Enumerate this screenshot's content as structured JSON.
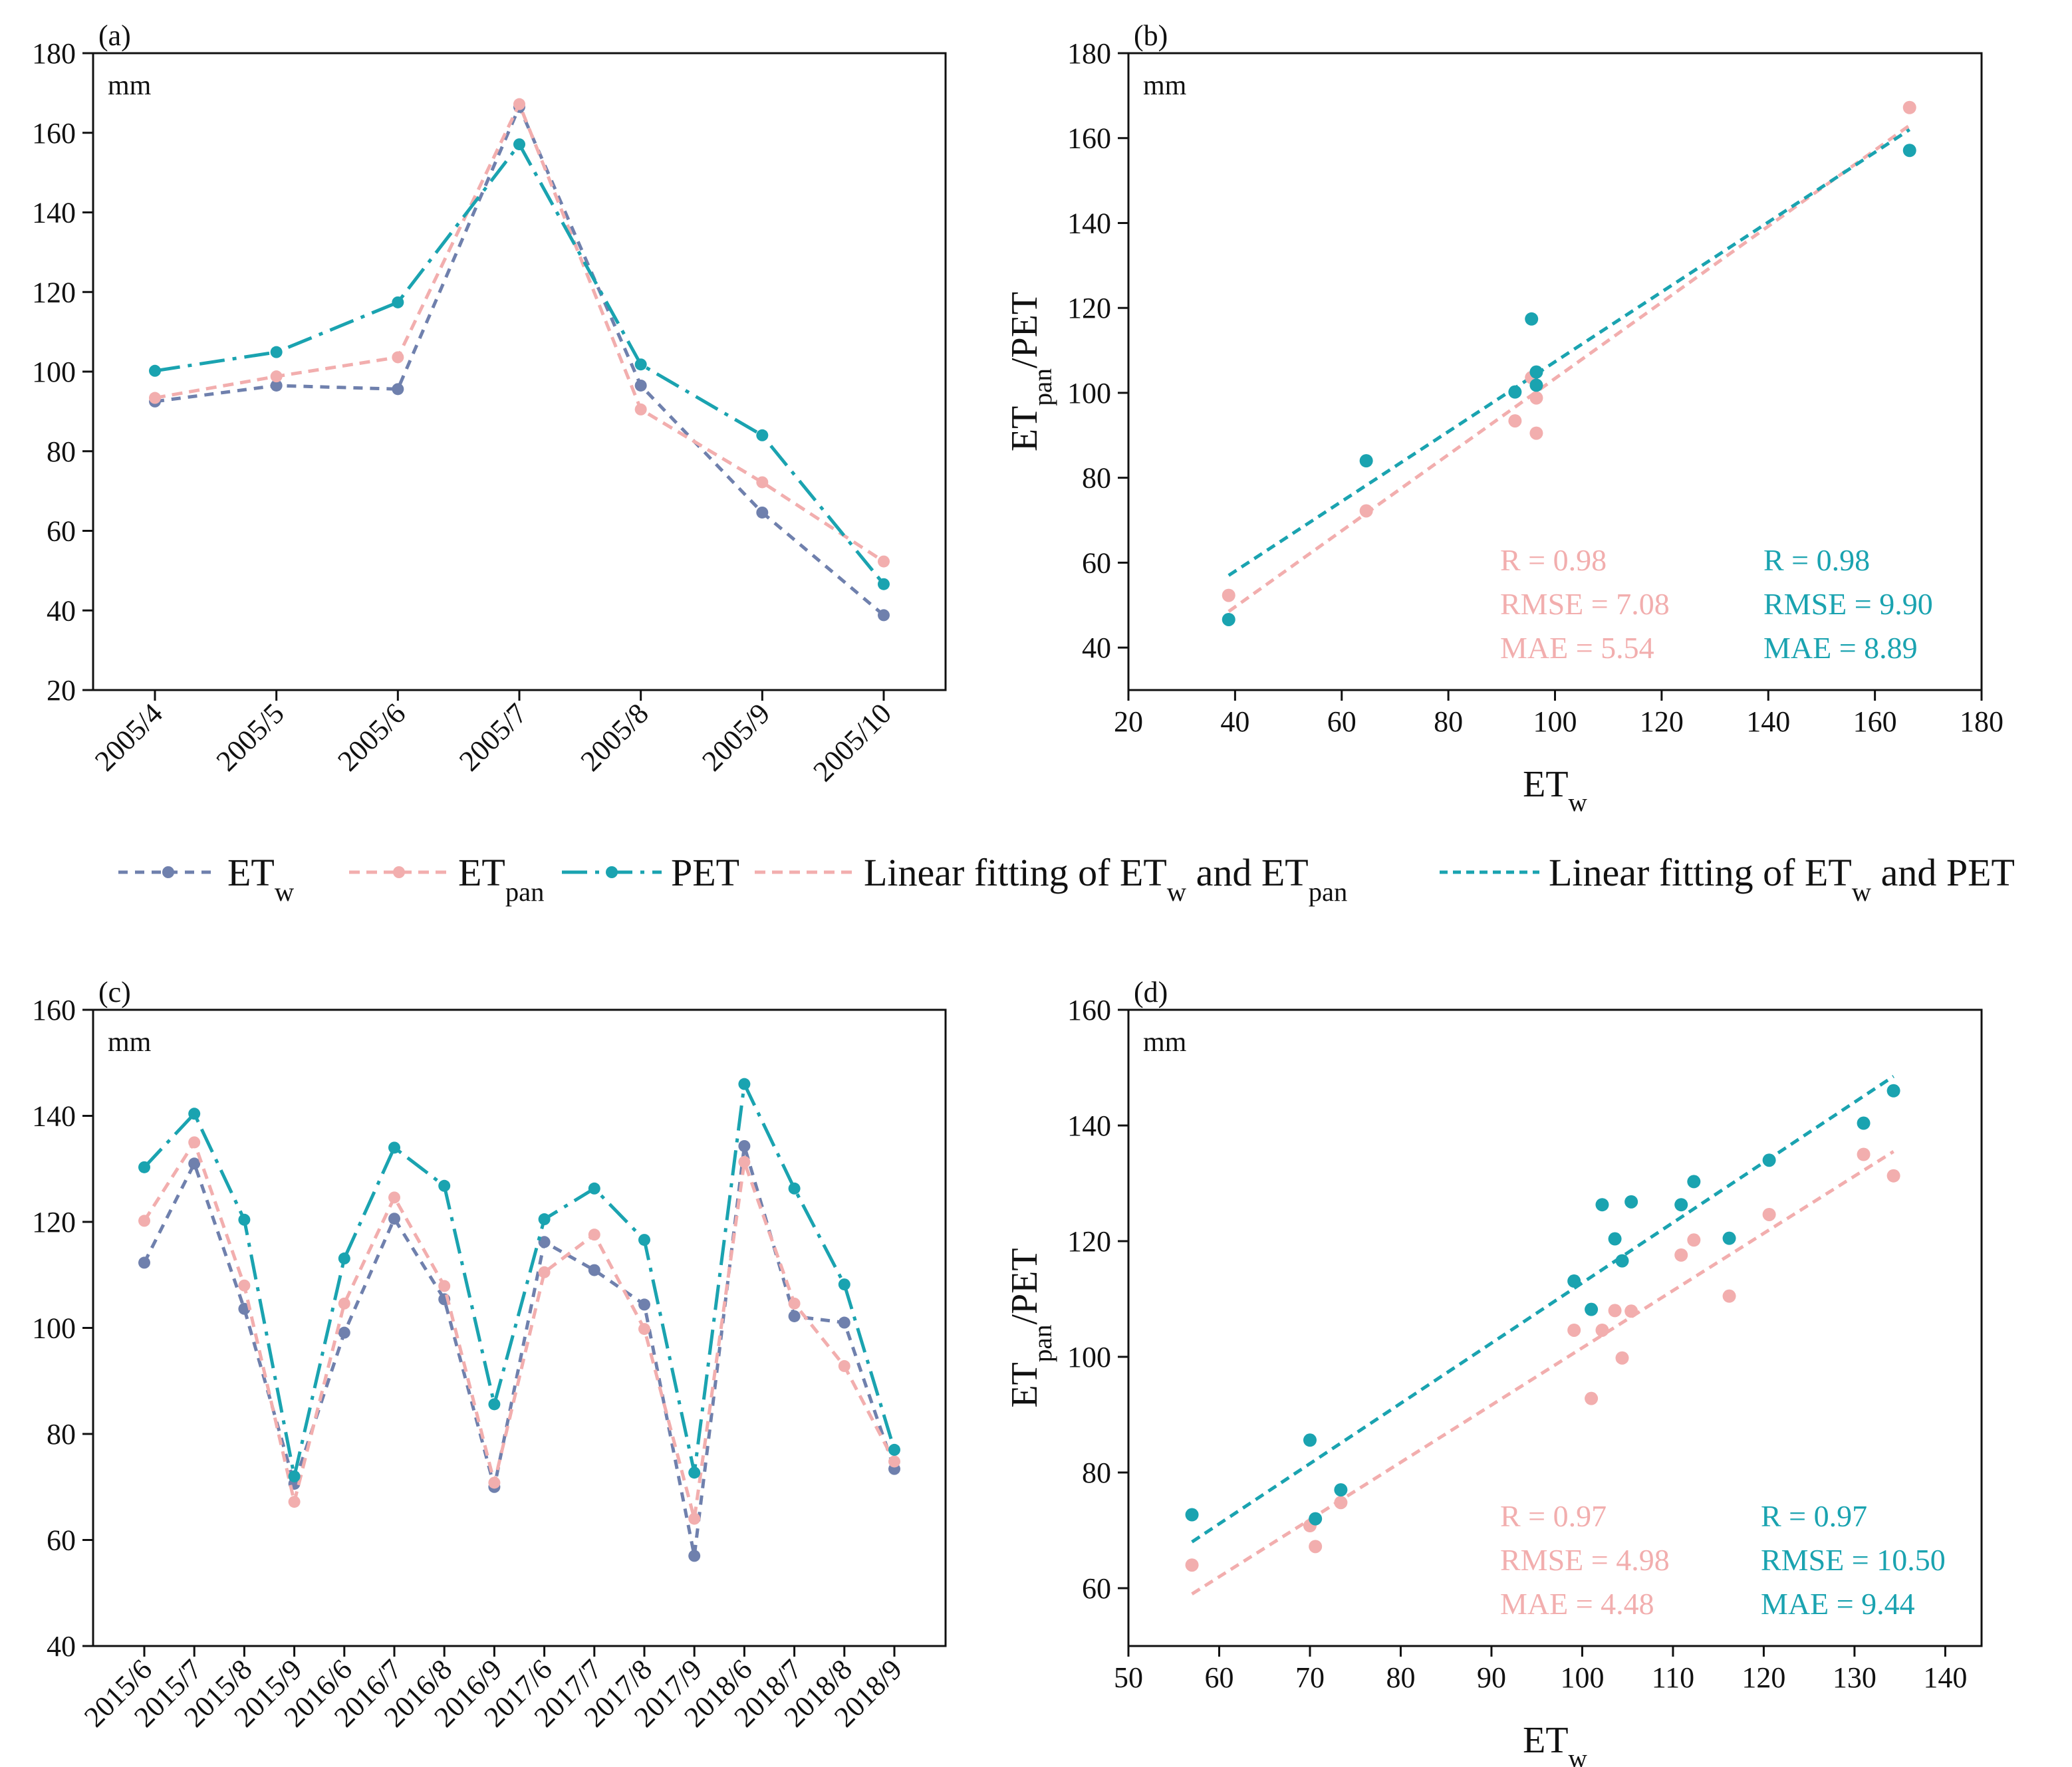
{
  "colors": {
    "etw": "#6f80ad",
    "etpan": "#f2aeae",
    "pet": "#1aa3b0",
    "axis": "#111111"
  },
  "legend": {
    "etw": {
      "main": "ET",
      "sub": "w"
    },
    "etpan": {
      "main": "ET",
      "sub": "pan"
    },
    "pet": {
      "main": "PET"
    },
    "fit_pan": {
      "p1": "Linear fitting of ET",
      "s1": "w",
      "p2": " and ET",
      "s2": "pan"
    },
    "fit_pet": {
      "p1": "Linear fitting of ET",
      "s1": "w",
      "p2": " and PET"
    }
  },
  "chart_data": [
    {
      "panel": "(a)",
      "type": "line",
      "unit": "mm",
      "categories": [
        "2005/4",
        "2005/5",
        "2005/6",
        "2005/7",
        "2005/8",
        "2005/9",
        "2005/10"
      ],
      "ylim": [
        20,
        180
      ],
      "yticks": [
        20,
        40,
        60,
        80,
        100,
        120,
        140,
        160,
        180
      ],
      "series": [
        {
          "name": "ETw",
          "values": [
            92.5,
            96.5,
            95.6,
            166.5,
            96.5,
            64.6,
            38.8
          ]
        },
        {
          "name": "ETpan",
          "values": [
            93.4,
            98.8,
            103.6,
            167.2,
            90.5,
            72.2,
            52.3
          ]
        },
        {
          "name": "PET",
          "values": [
            100.2,
            104.9,
            117.4,
            157.1,
            101.8,
            84.0,
            46.6
          ]
        }
      ]
    },
    {
      "panel": "(b)",
      "type": "scatter",
      "unit": "mm",
      "xlabel": {
        "main": "ET",
        "sub": "w"
      },
      "ylabel": {
        "main": "ET",
        "sub": "pan",
        "rest": "/PET"
      },
      "xlim": [
        20,
        180
      ],
      "ylim": [
        30,
        180
      ],
      "xticks": [
        20,
        40,
        60,
        80,
        100,
        120,
        140,
        160,
        180
      ],
      "yticks": [
        40,
        60,
        80,
        100,
        120,
        140,
        160,
        180
      ],
      "x": [
        92.5,
        96.5,
        95.6,
        166.5,
        96.5,
        64.6,
        38.8
      ],
      "series": [
        {
          "name": "ETpan",
          "values": [
            93.4,
            98.8,
            103.6,
            167.2,
            90.5,
            72.2,
            52.3
          ],
          "fit": {
            "x": [
              38.8,
              166.5
            ],
            "y": [
              48.5,
              163.0
            ]
          },
          "stats": [
            "R = 0.98",
            "RMSE = 7.08",
            "MAE = 5.54"
          ]
        },
        {
          "name": "PET",
          "values": [
            100.2,
            104.9,
            117.4,
            157.1,
            101.8,
            84.0,
            46.6
          ],
          "fit": {
            "x": [
              38.8,
              166.5
            ],
            "y": [
              57.0,
              162.0
            ]
          },
          "stats": [
            "R = 0.98",
            "RMSE = 9.90",
            "MAE = 8.89"
          ]
        }
      ]
    },
    {
      "panel": "(c)",
      "type": "line",
      "unit": "mm",
      "categories": [
        "2015/6",
        "2015/7",
        "2015/8",
        "2015/9",
        "2016/6",
        "2016/7",
        "2016/8",
        "2016/9",
        "2017/6",
        "2017/7",
        "2017/8",
        "2017/9",
        "2018/6",
        "2018/7",
        "2018/8",
        "2018/9"
      ],
      "ylim": [
        40,
        160
      ],
      "yticks": [
        40,
        60,
        80,
        100,
        120,
        140,
        160
      ],
      "series": [
        {
          "name": "ETw",
          "values": [
            112.3,
            131.0,
            103.6,
            70.6,
            99.1,
            120.6,
            105.4,
            70.0,
            116.2,
            110.9,
            104.4,
            57.0,
            134.3,
            102.2,
            101.0,
            73.4
          ]
        },
        {
          "name": "ETpan",
          "values": [
            120.2,
            135.0,
            108.0,
            67.2,
            104.6,
            124.6,
            107.9,
            70.8,
            110.5,
            117.6,
            99.8,
            64.0,
            131.3,
            104.6,
            92.8,
            74.8
          ]
        },
        {
          "name": "PET",
          "values": [
            130.3,
            140.4,
            120.4,
            72.0,
            113.1,
            134.0,
            126.8,
            85.6,
            120.5,
            126.3,
            116.6,
            72.7,
            146.0,
            126.3,
            108.2,
            77.0
          ]
        }
      ]
    },
    {
      "panel": "(d)",
      "type": "scatter",
      "unit": "mm",
      "xlabel": {
        "main": "ET",
        "sub": "w"
      },
      "ylabel": {
        "main": "ET",
        "sub": "pan",
        "rest": "/PET"
      },
      "xlim": [
        50,
        144
      ],
      "ylim": [
        50,
        160
      ],
      "xticks": [
        50,
        60,
        70,
        80,
        90,
        100,
        110,
        120,
        130,
        140
      ],
      "yticks": [
        60,
        80,
        100,
        120,
        140,
        160
      ],
      "x": [
        57.0,
        70.0,
        70.6,
        73.4,
        99.1,
        101.0,
        102.2,
        103.6,
        104.4,
        105.4,
        110.9,
        112.3,
        116.2,
        120.6,
        131.0,
        134.3
      ],
      "series": [
        {
          "name": "ETpan",
          "values": [
            64.0,
            70.8,
            67.2,
            74.8,
            104.6,
            92.8,
            104.6,
            108.0,
            99.8,
            107.9,
            117.6,
            120.2,
            110.5,
            124.6,
            135.0,
            131.3
          ],
          "fit": {
            "x": [
              57.0,
              134.3
            ],
            "y": [
              59.0,
              135.5
            ]
          },
          "stats": [
            "R = 0.97",
            "RMSE = 4.98",
            "MAE = 4.48"
          ]
        },
        {
          "name": "PET",
          "values": [
            72.7,
            85.6,
            72.0,
            77.0,
            113.1,
            108.2,
            126.3,
            120.4,
            116.6,
            126.8,
            126.3,
            130.3,
            120.5,
            134.0,
            140.4,
            146.0
          ],
          "fit": {
            "x": [
              57.0,
              134.3
            ],
            "y": [
              68.0,
              148.5
            ]
          },
          "stats": [
            "R = 0.97",
            "RMSE = 10.50",
            "MAE = 9.44"
          ]
        }
      ]
    }
  ]
}
